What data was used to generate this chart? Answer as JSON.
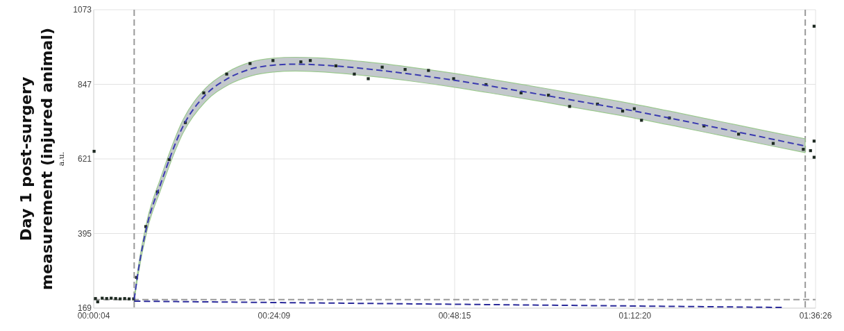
{
  "chart_data": {
    "type": "line",
    "title": "Day 1 post-surgery measurement (injured animal)",
    "ylabel": "a.u.",
    "xlim": [
      0.00111,
      1.60722
    ],
    "xticks": [
      {
        "value": 0.00111,
        "label": "00:00:04"
      },
      {
        "value": 0.4025,
        "label": "00:24:09"
      },
      {
        "value": 0.80417,
        "label": "00:48:15"
      },
      {
        "value": 1.20556,
        "label": "01:12:20"
      },
      {
        "value": 1.60722,
        "label": "01:36:26"
      }
    ],
    "ylim": [
      169,
      1073
    ],
    "yticks": [
      169,
      395,
      621,
      847,
      1073
    ],
    "grid": true,
    "series": [
      {
        "type": "scatter",
        "color": "#1e2a22",
        "marker": "square",
        "x": [
          0.002,
          0.005,
          0.01,
          0.02,
          0.03,
          0.04,
          0.05,
          0.06,
          0.07,
          0.08,
          0.09,
          0.0964,
          0.117,
          0.143,
          0.169,
          0.205,
          0.246,
          0.297,
          0.349,
          0.4,
          0.462,
          0.483,
          0.54,
          0.581,
          0.612,
          0.643,
          0.694,
          0.746,
          0.802,
          0.874,
          0.952,
          1.013,
          1.06,
          1.122,
          1.178,
          1.204,
          1.22,
          1.282,
          1.359,
          1.436,
          1.513,
          1.58,
          1.596,
          1.604,
          1.604,
          1.604
        ],
        "values": [
          644,
          198,
          188,
          199,
          198,
          199,
          198,
          197,
          198,
          197,
          197,
          262,
          416,
          521,
          619,
          731,
          821,
          878,
          910,
          919,
          915,
          919,
          903,
          878,
          864,
          899,
          892,
          889,
          864,
          846,
          821,
          814,
          780,
          787,
          766,
          773,
          738,
          745,
          721,
          696,
          668,
          650,
          646,
          675,
          626,
          1023
        ]
      },
      {
        "color": "#3a3ab0",
        "line_style": "dashed",
        "marker": "none",
        "x": [
          0.0912,
          0.1,
          0.12,
          0.15,
          0.2,
          0.25,
          0.3,
          0.35,
          0.4,
          0.45,
          0.5,
          0.6,
          0.7,
          0.8,
          0.9,
          1.0,
          1.1,
          1.2,
          1.3,
          1.4,
          1.5,
          1.584
        ],
        "values": [
          195,
          280,
          420,
          545,
          720,
          815,
          865,
          893,
          905,
          908,
          906,
          895,
          879,
          860,
          838,
          815,
          791,
          767,
          740,
          712,
          684,
          660
        ],
        "lower": [
          190,
          270,
          405,
          527,
          700,
          795,
          845,
          872,
          884,
          887,
          885,
          874,
          858,
          839,
          817,
          794,
          770,
          746,
          719,
          691,
          663,
          640
        ],
        "upper": [
          200,
          290,
          435,
          563,
          740,
          835,
          885,
          914,
          926,
          929,
          927,
          916,
          900,
          881,
          859,
          836,
          812,
          788,
          761,
          733,
          705,
          682
        ]
      },
      {
        "color": "#2a2a9a",
        "line_style": "dashed",
        "marker": "none",
        "x": [
          0.0912,
          1.534
        ],
        "values": [
          190,
          171
        ]
      }
    ],
    "ref_lines": [
      {
        "axis": "x",
        "value": 0.0912,
        "color": "#999999",
        "line_style": "dashed"
      },
      {
        "axis": "x",
        "value": 1.5843,
        "color": "#999999",
        "line_style": "dashed"
      },
      {
        "axis": "y",
        "value": 195,
        "color": "#999999",
        "line_style": "dashed"
      }
    ]
  }
}
